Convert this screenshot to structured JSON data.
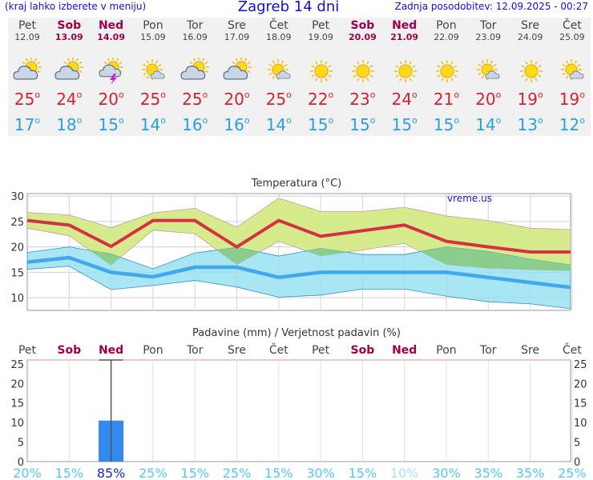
{
  "header": {
    "left": "(kraj lahko izberete v meniju)",
    "title": "Zagreb 14 dni",
    "right": "Zadnja posodobitev: 12.09.2025 - 00:27"
  },
  "days": [
    {
      "name": "Pet",
      "date": "12.09",
      "weekend": false,
      "icon": "partly-cloudy-icon",
      "max": "25",
      "min": "17"
    },
    {
      "name": "Sob",
      "date": "13.09",
      "weekend": true,
      "icon": "partly-cloudy-icon",
      "max": "24",
      "min": "18"
    },
    {
      "name": "Ned",
      "date": "14.09",
      "weekend": true,
      "icon": "thunderstorm-icon",
      "max": "20",
      "min": "15"
    },
    {
      "name": "Pon",
      "date": "15.09",
      "weekend": false,
      "icon": "sun-small-cloud-icon",
      "max": "25",
      "min": "14"
    },
    {
      "name": "Tor",
      "date": "16.09",
      "weekend": false,
      "icon": "partly-cloudy-icon",
      "max": "25",
      "min": "16"
    },
    {
      "name": "Sre",
      "date": "17.09",
      "weekend": false,
      "icon": "partly-cloudy-icon",
      "max": "20",
      "min": "16"
    },
    {
      "name": "Čet",
      "date": "18.09",
      "weekend": false,
      "icon": "sun-small-cloud-icon",
      "max": "25",
      "min": "14"
    },
    {
      "name": "Pet",
      "date": "19.09",
      "weekend": false,
      "icon": "sun-icon",
      "max": "22",
      "min": "15"
    },
    {
      "name": "Sob",
      "date": "20.09",
      "weekend": true,
      "icon": "sun-icon",
      "max": "23",
      "min": "15"
    },
    {
      "name": "Ned",
      "date": "21.09",
      "weekend": true,
      "icon": "sun-icon",
      "max": "24",
      "min": "15"
    },
    {
      "name": "Pon",
      "date": "22.09",
      "weekend": false,
      "icon": "sun-icon",
      "max": "21",
      "min": "15"
    },
    {
      "name": "Tor",
      "date": "23.09",
      "weekend": false,
      "icon": "sun-small-cloud-icon",
      "max": "20",
      "min": "14"
    },
    {
      "name": "Sre",
      "date": "24.09",
      "weekend": false,
      "icon": "sun-icon",
      "max": "19",
      "min": "13"
    },
    {
      "name": "Čet",
      "date": "25.09",
      "weekend": false,
      "icon": "sun-small-cloud-icon",
      "max": "19",
      "min": "12"
    }
  ],
  "degree_symbol": "o",
  "colors": {
    "max_line": "#d63043",
    "min_line": "#41a8ee",
    "max_band": "#d6ec8c",
    "min_band": "#94e0f0",
    "overlap": "#8ccc8c",
    "weekend_label": "#a0004a",
    "rain_bar": "#3388ee",
    "pct_color": "#55c8ee",
    "pct_high": "#1a2ad0"
  },
  "chart_data": [
    {
      "type": "line",
      "title": "Temperatura (°C)",
      "watermark": "vreme.us",
      "ylim": [
        7.5,
        30.5
      ],
      "yticks": [
        10,
        15,
        20,
        25,
        30
      ],
      "grid": true,
      "x": [
        "12.09",
        "13.09",
        "14.09",
        "15.09",
        "16.09",
        "17.09",
        "18.09",
        "19.09",
        "20.09",
        "21.09",
        "22.09",
        "23.09",
        "24.09",
        "25.09"
      ],
      "series": [
        {
          "role": "max",
          "values": [
            25.2,
            24.3,
            20.1,
            25.2,
            25.2,
            20.0,
            25.2,
            22.1,
            23.2,
            24.3,
            21.1,
            20.0,
            19.0,
            19.0
          ]
        },
        {
          "role": "max_range_high",
          "values": [
            26.8,
            26.3,
            23.8,
            26.7,
            27.6,
            23.9,
            29.6,
            27.0,
            27.0,
            27.8,
            26.1,
            25.2,
            23.7,
            23.4
          ]
        },
        {
          "role": "max_range_low",
          "values": [
            23.7,
            22.2,
            16.4,
            23.3,
            22.6,
            16.5,
            21.1,
            18.2,
            19.4,
            20.7,
            16.5,
            15.8,
            15.5,
            15.3
          ]
        },
        {
          "role": "min",
          "values": [
            17.0,
            17.9,
            15.0,
            14.1,
            16.0,
            16.0,
            14.0,
            15.0,
            15.0,
            15.0,
            15.0,
            14.0,
            13.0,
            12.0
          ]
        },
        {
          "role": "min_range_high",
          "values": [
            18.9,
            20.0,
            18.6,
            15.7,
            18.8,
            19.9,
            18.2,
            19.7,
            18.5,
            18.5,
            20.0,
            19.1,
            17.6,
            16.4
          ]
        },
        {
          "role": "min_range_low",
          "values": [
            15.6,
            16.2,
            11.6,
            12.4,
            13.4,
            12.1,
            10.1,
            10.5,
            11.7,
            11.7,
            10.3,
            9.2,
            8.8,
            7.8
          ]
        }
      ]
    },
    {
      "type": "bar",
      "title": "Padavine (mm) / Verjetnost padavin (%)",
      "categories": [
        "Pet",
        "Sob",
        "Ned",
        "Pon",
        "Tor",
        "Sre",
        "Čet",
        "Pet",
        "Sob",
        "Ned",
        "Pon",
        "Tor",
        "Sre",
        "Čet"
      ],
      "weekend": [
        false,
        true,
        true,
        false,
        false,
        false,
        false,
        false,
        true,
        true,
        false,
        false,
        false,
        false
      ],
      "values": [
        0,
        0,
        10.5,
        0,
        0,
        0,
        0,
        0,
        0,
        0,
        0,
        0,
        0,
        0
      ],
      "error_high": [
        0,
        0,
        26,
        0,
        0,
        0,
        0,
        0,
        0,
        0,
        0,
        0,
        0,
        0
      ],
      "probability": [
        "20%",
        "15%",
        "85%",
        "25%",
        "15%",
        "25%",
        "15%",
        "30%",
        "15%",
        "10%",
        "30%",
        "35%",
        "35%",
        "25%"
      ],
      "ylim": [
        0,
        26
      ],
      "yticks": [
        0,
        5,
        10,
        15,
        20,
        25
      ]
    }
  ]
}
